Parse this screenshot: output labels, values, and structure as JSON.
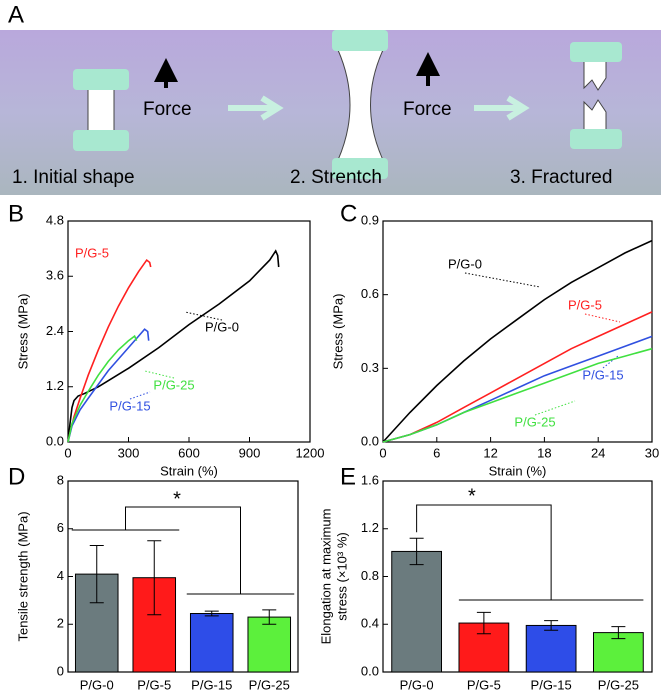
{
  "diagram": {
    "panel_label": "A",
    "force_labels": [
      "Force",
      "Force"
    ],
    "steps": [
      "1. Initial shape",
      "2. Strentch",
      "3. Fractured"
    ]
  },
  "chart_data": [
    {
      "type": "line",
      "panel_label": "B",
      "xlabel": "Strain (%)",
      "ylabel": "Stress (MPa)",
      "xlim": [
        0,
        1200
      ],
      "xticks": [
        0,
        300,
        600,
        900,
        1200
      ],
      "ylim": [
        0,
        4.8
      ],
      "yticks": [
        {
          "value": 0,
          "label": "0.0"
        },
        1.2,
        2.4,
        3.6,
        4.8
      ],
      "series": [
        {
          "name": "P/G-0",
          "color": "#000000",
          "x": [
            0,
            10,
            20,
            30,
            50,
            80,
            150,
            300,
            450,
            600,
            750,
            900,
            1000,
            1030,
            1040,
            1045
          ],
          "values": [
            0,
            0.4,
            0.75,
            0.9,
            1.0,
            1.05,
            1.2,
            1.6,
            2.05,
            2.55,
            3.0,
            3.5,
            3.95,
            4.15,
            4.05,
            3.8
          ]
        },
        {
          "name": "P/G-5",
          "color": "#ff2020",
          "x": [
            0,
            10,
            30,
            60,
            100,
            150,
            200,
            250,
            300,
            350,
            390,
            405,
            410
          ],
          "values": [
            0,
            0.2,
            0.55,
            0.95,
            1.45,
            2.0,
            2.5,
            2.95,
            3.35,
            3.7,
            3.95,
            3.9,
            3.8
          ]
        },
        {
          "name": "P/G-15",
          "color": "#3050e0",
          "x": [
            0,
            20,
            60,
            100,
            150,
            200,
            250,
            300,
            350,
            380,
            395,
            400
          ],
          "values": [
            0,
            0.35,
            0.7,
            0.95,
            1.25,
            1.55,
            1.8,
            2.05,
            2.3,
            2.45,
            2.4,
            2.2
          ]
        },
        {
          "name": "P/G-25",
          "color": "#40e040",
          "x": [
            0,
            20,
            60,
            100,
            150,
            200,
            250,
            300,
            330,
            340
          ],
          "values": [
            0,
            0.4,
            0.8,
            1.1,
            1.45,
            1.75,
            2.0,
            2.2,
            2.3,
            2.2
          ]
        }
      ]
    },
    {
      "type": "line",
      "panel_label": "C",
      "xlabel": "Strain (%)",
      "ylabel": "Stress (MPa)",
      "xlim": [
        0,
        30
      ],
      "xticks": [
        0,
        6,
        12,
        18,
        24,
        30
      ],
      "ylim": [
        0,
        0.9
      ],
      "yticks": [
        {
          "value": 0,
          "label": "0.0"
        },
        0.3,
        0.6,
        0.9
      ],
      "series": [
        {
          "name": "P/G-0",
          "color": "#000000",
          "x": [
            0,
            3,
            6,
            9,
            12,
            15,
            18,
            21,
            24,
            27,
            30
          ],
          "values": [
            0,
            0.12,
            0.23,
            0.33,
            0.42,
            0.5,
            0.58,
            0.65,
            0.71,
            0.77,
            0.82
          ]
        },
        {
          "name": "P/G-5",
          "color": "#ff2020",
          "x": [
            0,
            3,
            6,
            9,
            12,
            15,
            18,
            21,
            24,
            27,
            30
          ],
          "values": [
            0,
            0.03,
            0.08,
            0.14,
            0.2,
            0.26,
            0.32,
            0.38,
            0.43,
            0.48,
            0.53
          ]
        },
        {
          "name": "P/G-15",
          "color": "#3050e0",
          "x": [
            0,
            3,
            6,
            9,
            12,
            15,
            18,
            21,
            24,
            27,
            30
          ],
          "values": [
            0,
            0.03,
            0.07,
            0.12,
            0.17,
            0.22,
            0.27,
            0.31,
            0.35,
            0.39,
            0.43
          ]
        },
        {
          "name": "P/G-25",
          "color": "#40e040",
          "x": [
            0,
            3,
            6,
            9,
            12,
            15,
            18,
            21,
            24,
            27,
            30
          ],
          "values": [
            0,
            0.03,
            0.07,
            0.12,
            0.16,
            0.2,
            0.24,
            0.28,
            0.32,
            0.35,
            0.38
          ]
        }
      ]
    },
    {
      "type": "bar",
      "panel_label": "D",
      "ylabel": "Tensile strength (MPa)",
      "annotation": "*",
      "categories": [
        "P/G-0",
        "P/G-5",
        "P/G-15",
        "P/G-25"
      ],
      "values": [
        4.1,
        3.95,
        2.45,
        2.3
      ],
      "errors": [
        1.2,
        1.55,
        0.1,
        0.3
      ],
      "colors": [
        "#6b7b7e",
        "#ff1a1a",
        "#2e4de8",
        "#5cf03c"
      ],
      "ylim": [
        0,
        8
      ],
      "yticks": [
        0,
        2,
        4,
        6,
        8
      ]
    },
    {
      "type": "bar",
      "panel_label": "E",
      "ylabel": [
        "Elongation at maximum",
        "stress (×10³ %)"
      ],
      "annotation": "*",
      "categories": [
        "P/G-0",
        "P/G-5",
        "P/G-15",
        "P/G-25"
      ],
      "values": [
        1.01,
        0.41,
        0.39,
        0.33
      ],
      "errors": [
        0.11,
        0.09,
        0.04,
        0.05
      ],
      "colors": [
        "#6b7b7e",
        "#ff1a1a",
        "#2e4de8",
        "#5cf03c"
      ],
      "ylim": [
        0,
        1.6
      ],
      "yticks": [
        {
          "value": 0,
          "label": "0.0"
        },
        0.4,
        0.8,
        1.2,
        1.6
      ]
    }
  ]
}
